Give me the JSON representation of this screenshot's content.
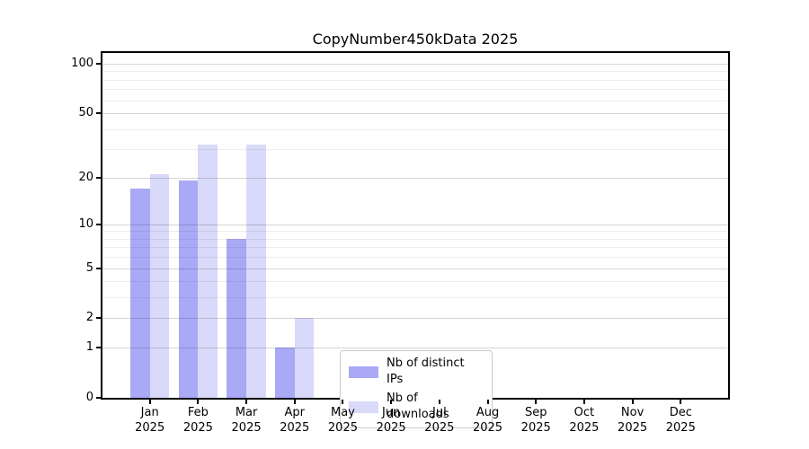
{
  "title": "CopyNumber450kData 2025",
  "chart_data": {
    "type": "bar",
    "title": "CopyNumber450kData 2025",
    "categories": [
      "Jan",
      "Feb",
      "Mar",
      "Apr",
      "May",
      "Jun",
      "Jul",
      "Aug",
      "Sep",
      "Oct",
      "Nov",
      "Dec"
    ],
    "x_year_label": "2025",
    "series": [
      {
        "name": "Nb of distinct IPs",
        "slug": "distinct-ips",
        "color": "#a9a9f6",
        "values": [
          17,
          19,
          8,
          1,
          0,
          0,
          0,
          0,
          0,
          0,
          0,
          0
        ]
      },
      {
        "name": "Nb of downloads",
        "slug": "downloads",
        "color": "#d9d9fa",
        "values": [
          21,
          32,
          32,
          2,
          0,
          0,
          0,
          0,
          0,
          0,
          0,
          0
        ]
      }
    ],
    "yscale": "log1p",
    "ylim": [
      0,
      116
    ],
    "y_major_ticks": [
      0,
      1,
      2,
      5,
      10,
      20,
      50,
      100
    ],
    "y_minor_gridlines": [
      3,
      4,
      6,
      7,
      8,
      9,
      30,
      40,
      60,
      70,
      80,
      90
    ],
    "grid": true,
    "legend_position": "lower center",
    "colors": {
      "axis": "#000000",
      "major_grid": "rgba(0,0,0,0.16)",
      "minor_grid": "rgba(0,0,0,0.07)",
      "background": "#ffffff"
    }
  }
}
